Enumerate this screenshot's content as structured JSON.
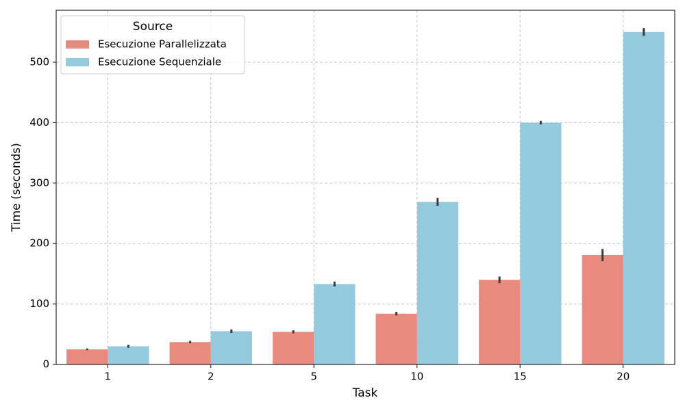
{
  "chart_data": {
    "type": "bar",
    "x_label": "Task",
    "y_label": "Time (seconds)",
    "categories": [
      "1",
      "2",
      "5",
      "10",
      "15",
      "20"
    ],
    "series": [
      {
        "name": "Esecuzione Parallelizzata",
        "color": "#e88b7e",
        "values": [
          25,
          37,
          54,
          84,
          140,
          181
        ],
        "errors": [
          1.5,
          2,
          2.5,
          3,
          5.5,
          10
        ]
      },
      {
        "name": "Esecuzione Sequenziale",
        "color": "#94cade",
        "values": [
          30,
          55,
          133,
          269,
          400,
          550
        ],
        "errors": [
          2.5,
          3,
          4,
          6.5,
          3,
          6.5
        ]
      }
    ],
    "legend_title": "Source",
    "legend_position": "upper left",
    "ylim": [
      0,
      586
    ],
    "yticks": [
      0,
      100,
      200,
      300,
      400,
      500
    ],
    "grid": true
  }
}
